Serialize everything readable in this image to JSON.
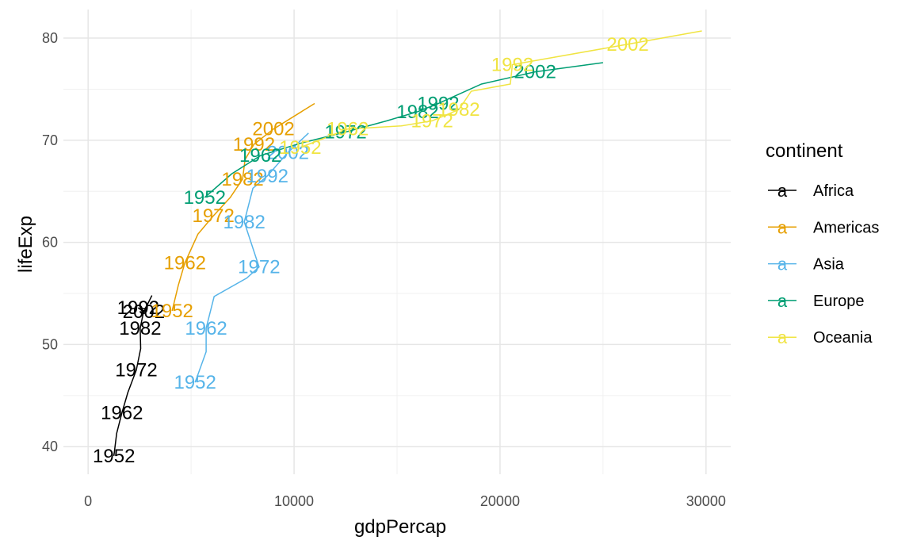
{
  "chart_data": {
    "type": "line",
    "xlabel": "gdpPercap",
    "ylabel": "lifeExp",
    "xlim": [
      -1200,
      31200
    ],
    "ylim": [
      37.3,
      82.8
    ],
    "x_ticks": [
      0,
      10000,
      20000,
      30000
    ],
    "x_tick_labels": [
      "0",
      "10000",
      "20000",
      "30000"
    ],
    "y_ticks": [
      40,
      50,
      60,
      70,
      80
    ],
    "y_tick_labels": [
      "40",
      "50",
      "60",
      "70",
      "80"
    ],
    "grid": true,
    "legend": {
      "title": "continent",
      "position": "right",
      "key_glyph": "a"
    },
    "series": [
      {
        "name": "Africa",
        "color": "#000000",
        "points": [
          [
            1253,
            39.1
          ],
          [
            1385,
            41.3
          ],
          [
            1640,
            43.3
          ],
          [
            1928,
            45.3
          ],
          [
            2340,
            47.5
          ],
          [
            2550,
            49.6
          ],
          [
            2530,
            51.6
          ],
          [
            2700,
            53.3
          ],
          [
            2430,
            53.6
          ],
          [
            2700,
            53.2
          ],
          [
            3100,
            54.8
          ]
        ],
        "labels": [
          {
            "text": "1952",
            "x": 1253,
            "y": 39.1
          },
          {
            "text": "1962",
            "x": 1640,
            "y": 43.3
          },
          {
            "text": "1972",
            "x": 2340,
            "y": 47.5
          },
          {
            "text": "1982",
            "x": 2530,
            "y": 51.6
          },
          {
            "text": "1992",
            "x": 2430,
            "y": 53.6
          },
          {
            "text": "2002",
            "x": 2700,
            "y": 53.2
          }
        ]
      },
      {
        "name": "Americas",
        "color": "#E69F00",
        "points": [
          [
            4080,
            53.3
          ],
          [
            4380,
            55.8
          ],
          [
            4700,
            58.0
          ],
          [
            5330,
            60.8
          ],
          [
            6080,
            62.6
          ],
          [
            6900,
            64.4
          ],
          [
            7500,
            66.2
          ],
          [
            7620,
            68.1
          ],
          [
            8050,
            69.6
          ],
          [
            9000,
            71.1
          ],
          [
            11000,
            73.6
          ]
        ],
        "labels": [
          {
            "text": "1952",
            "x": 4080,
            "y": 53.3
          },
          {
            "text": "1962",
            "x": 4700,
            "y": 58.0
          },
          {
            "text": "1972",
            "x": 6080,
            "y": 62.6
          },
          {
            "text": "1982",
            "x": 7500,
            "y": 66.2
          },
          {
            "text": "1992",
            "x": 8050,
            "y": 69.6
          },
          {
            "text": "2002",
            "x": 9000,
            "y": 71.1
          }
        ]
      },
      {
        "name": "Asia",
        "color": "#56B4E9",
        "points": [
          [
            5195,
            46.3
          ],
          [
            5730,
            49.3
          ],
          [
            5730,
            51.6
          ],
          [
            6120,
            54.7
          ],
          [
            7700,
            56.5
          ],
          [
            8300,
            57.6
          ],
          [
            7580,
            62.0
          ],
          [
            8000,
            65.3
          ],
          [
            8700,
            66.5
          ],
          [
            9700,
            68.8
          ],
          [
            10700,
            70.7
          ]
        ],
        "labels": [
          {
            "text": "1952",
            "x": 5195,
            "y": 46.3
          },
          {
            "text": "1962",
            "x": 5730,
            "y": 51.6
          },
          {
            "text": "1972",
            "x": 8300,
            "y": 57.6
          },
          {
            "text": "1982",
            "x": 7580,
            "y": 62.0
          },
          {
            "text": "1992",
            "x": 8700,
            "y": 66.5
          },
          {
            "text": "2002",
            "x": 9700,
            "y": 68.8
          }
        ]
      },
      {
        "name": "Europe",
        "color": "#009E73",
        "points": [
          [
            5660,
            64.4
          ],
          [
            6960,
            66.7
          ],
          [
            8370,
            68.5
          ],
          [
            10300,
            69.7
          ],
          [
            12500,
            70.8
          ],
          [
            14500,
            71.9
          ],
          [
            16000,
            72.8
          ],
          [
            17000,
            73.6
          ],
          [
            19100,
            75.5
          ],
          [
            21700,
            76.7
          ],
          [
            25000,
            77.6
          ]
        ],
        "labels": [
          {
            "text": "1952",
            "x": 5660,
            "y": 64.4
          },
          {
            "text": "1962",
            "x": 8370,
            "y": 68.5
          },
          {
            "text": "1972",
            "x": 12500,
            "y": 70.8
          },
          {
            "text": "1982",
            "x": 16000,
            "y": 72.8
          },
          {
            "text": "1992",
            "x": 17000,
            "y": 73.6
          },
          {
            "text": "2002",
            "x": 21700,
            "y": 76.7
          }
        ]
      },
      {
        "name": "Oceania",
        "color": "#F0E442",
        "points": [
          [
            10300,
            69.3
          ],
          [
            11600,
            70.3
          ],
          [
            12600,
            71.1
          ],
          [
            15200,
            71.4
          ],
          [
            16700,
            71.9
          ],
          [
            18000,
            73.0
          ],
          [
            18600,
            74.8
          ],
          [
            20500,
            75.5
          ],
          [
            20600,
            77.4
          ],
          [
            26200,
            79.4
          ],
          [
            29800,
            80.7
          ]
        ],
        "labels": [
          {
            "text": "1952",
            "x": 10300,
            "y": 69.3
          },
          {
            "text": "1962",
            "x": 12600,
            "y": 71.1
          },
          {
            "text": "1972",
            "x": 16700,
            "y": 71.9
          },
          {
            "text": "1982",
            "x": 18000,
            "y": 73.0
          },
          {
            "text": "1992",
            "x": 20600,
            "y": 77.4
          },
          {
            "text": "2002",
            "x": 26200,
            "y": 79.4
          }
        ]
      }
    ]
  }
}
